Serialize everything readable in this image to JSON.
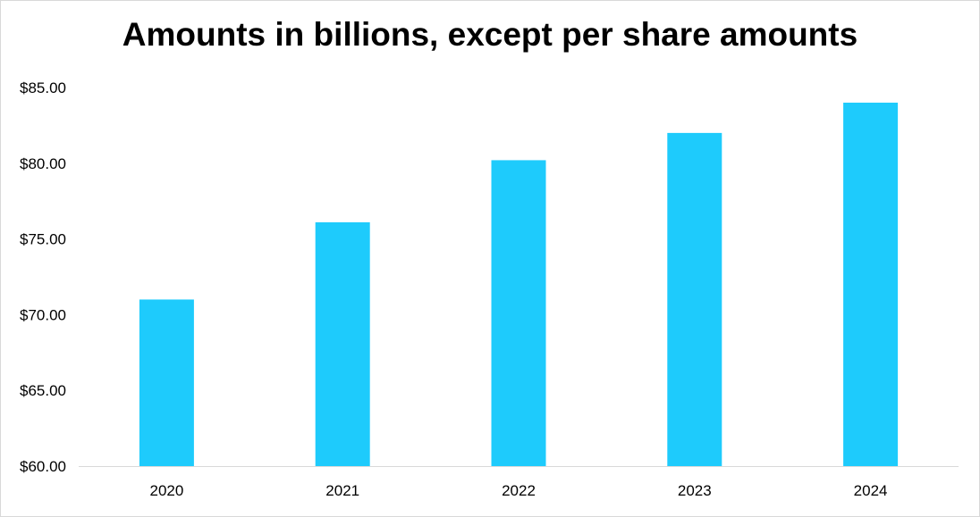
{
  "chart_data": {
    "type": "bar",
    "title": "Amounts in billions, except per share amounts",
    "categories": [
      "2020",
      "2021",
      "2022",
      "2023",
      "2024"
    ],
    "values": [
      71.0,
      76.1,
      80.2,
      82.0,
      84.0
    ],
    "ylim": [
      60,
      85
    ],
    "yticks": [
      60,
      65,
      70,
      75,
      80,
      85
    ],
    "ytick_labels": [
      "$60.00",
      "$65.00",
      "$70.00",
      "$75.00",
      "$80.00",
      "$85.00"
    ],
    "xlabel": "",
    "ylabel": "",
    "grid": false,
    "legend": "none",
    "colors": {
      "bar": "#1ecbfc",
      "axis": "#d9d9d9",
      "text": "#000000",
      "border": "#d9d9d9"
    }
  }
}
